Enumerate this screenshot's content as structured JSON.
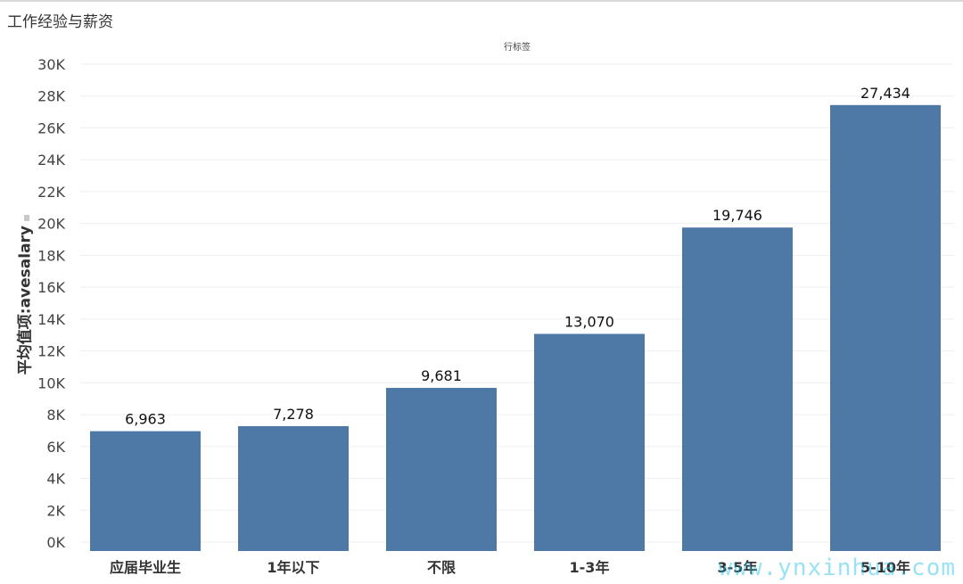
{
  "title": "工作经验与薪资",
  "column_header": "行标签",
  "watermark": "www.ynxinhua.com",
  "colors": {
    "bar": "#4e79a7",
    "grid": "#efefef",
    "tick_text": "#444444",
    "label_text": "#111111"
  },
  "chart_data": {
    "type": "bar",
    "title": "工作经验与薪资",
    "xlabel": "",
    "ylabel": "平均值项:avesalary",
    "categories": [
      "应届毕业生",
      "1年以下",
      "不限",
      "1-3年",
      "3-5年",
      "5-10年"
    ],
    "values": [
      6963,
      7278,
      9681,
      13070,
      19746,
      27434
    ],
    "value_labels": [
      "6,963",
      "7,278",
      "9,681",
      "13,070",
      "19,746",
      "27,434"
    ],
    "ylim": [
      0,
      30000
    ],
    "y_ticks": [
      0,
      2000,
      4000,
      6000,
      8000,
      10000,
      12000,
      14000,
      16000,
      18000,
      20000,
      22000,
      24000,
      26000,
      28000,
      30000
    ],
    "y_tick_labels": [
      "0K",
      "2K",
      "4K",
      "6K",
      "8K",
      "10K",
      "12K",
      "14K",
      "16K",
      "18K",
      "20K",
      "22K",
      "24K",
      "26K",
      "28K",
      "30K"
    ],
    "grid": true,
    "legend": "none"
  }
}
